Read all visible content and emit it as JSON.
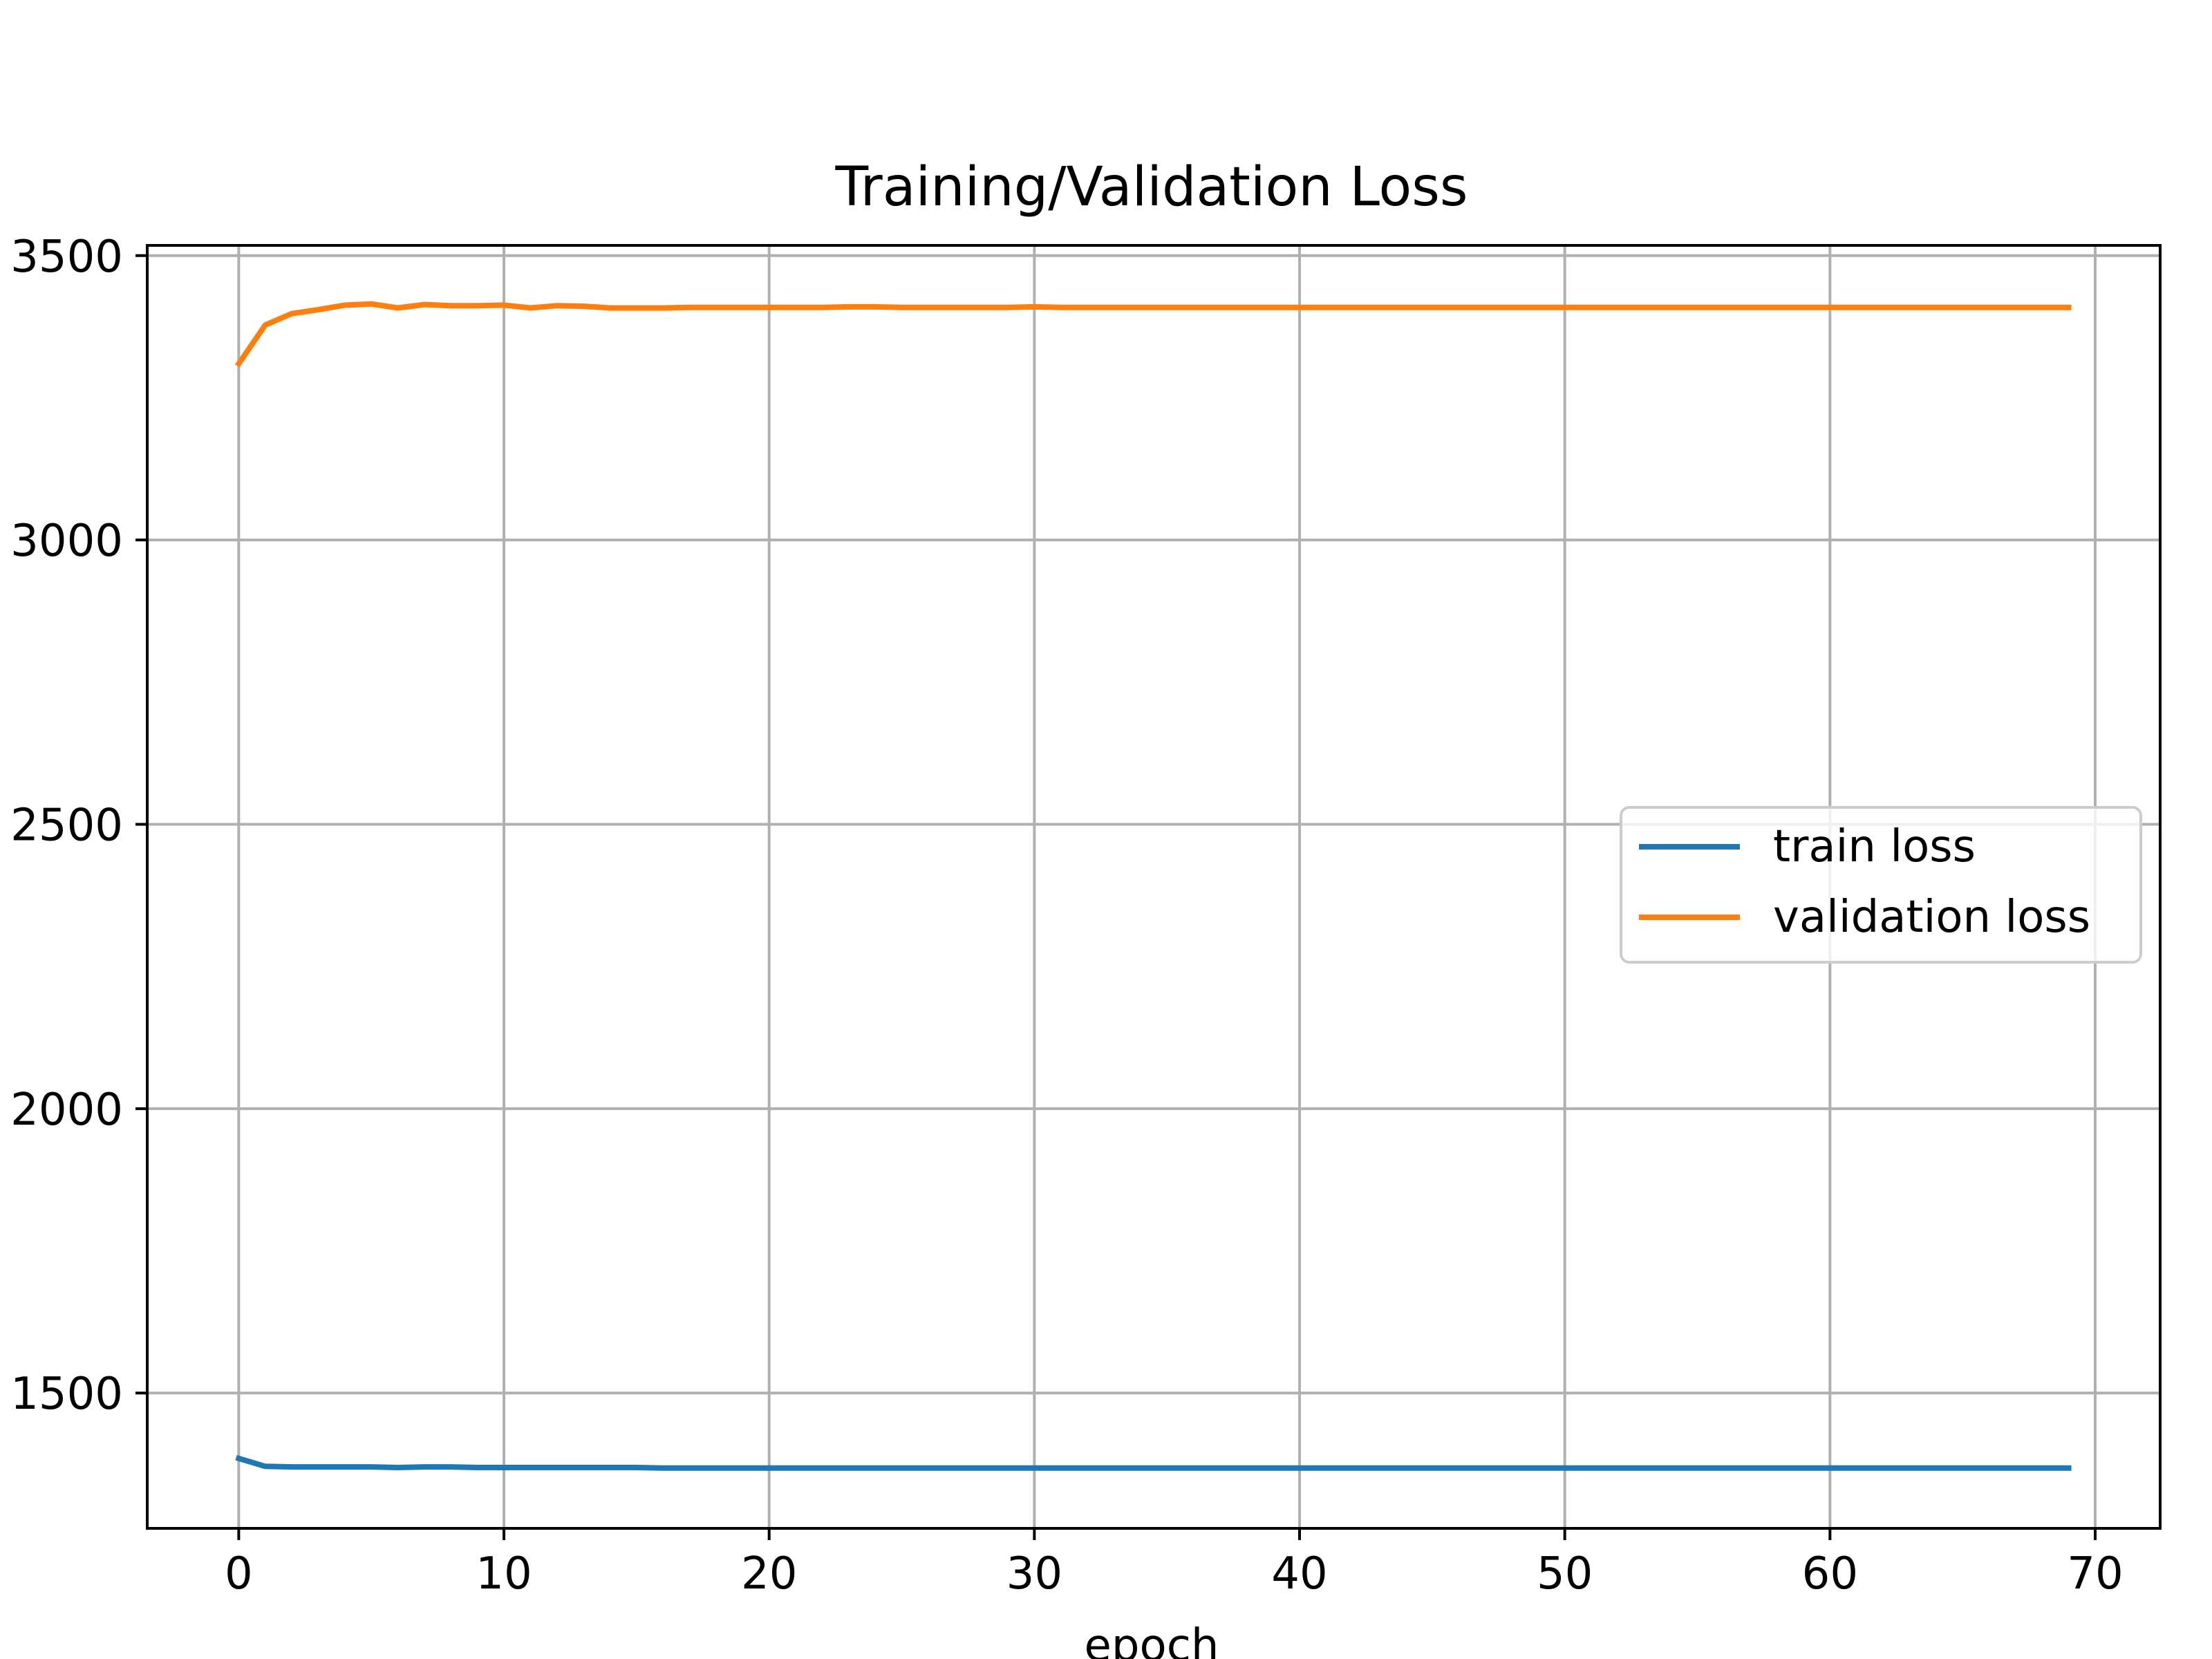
{
  "chart_data": {
    "type": "line",
    "title": "Training/Validation Loss",
    "xlabel": "epoch",
    "ylabel": "",
    "xlim": [
      -3.45,
      72.45
    ],
    "ylim": [
      1262,
      3518
    ],
    "x_ticks": [
      0,
      10,
      20,
      30,
      40,
      50,
      60,
      70
    ],
    "y_ticks": [
      1500,
      2000,
      2500,
      3000,
      3500
    ],
    "grid": true,
    "legend_position": "center-right",
    "series": [
      {
        "name": "train loss",
        "color": "#1f77b4",
        "x_start": 0,
        "values": [
          1385,
          1371,
          1370,
          1370,
          1370,
          1370,
          1369,
          1370,
          1370,
          1369,
          1369,
          1369,
          1369,
          1369,
          1369,
          1369,
          1368,
          1368,
          1368,
          1368,
          1368,
          1368,
          1368,
          1368,
          1368,
          1368,
          1368,
          1368,
          1368,
          1368,
          1368,
          1368,
          1368,
          1368,
          1368,
          1368,
          1368,
          1368,
          1368,
          1368,
          1368,
          1368,
          1368,
          1368,
          1368,
          1368,
          1368,
          1368,
          1368,
          1368,
          1368,
          1368,
          1368,
          1368,
          1368,
          1368,
          1368,
          1368,
          1368,
          1368,
          1368,
          1368,
          1368,
          1368,
          1368,
          1368,
          1368,
          1368,
          1368,
          1368
        ]
      },
      {
        "name": "validation loss",
        "color": "#ff7f0e",
        "x_start": 0,
        "values": [
          3310,
          3378,
          3398,
          3405,
          3413,
          3415,
          3408,
          3414,
          3412,
          3412,
          3413,
          3408,
          3412,
          3411,
          3408,
          3408,
          3408,
          3409,
          3409,
          3409,
          3409,
          3409,
          3409,
          3410,
          3410,
          3409,
          3409,
          3409,
          3409,
          3409,
          3410,
          3409,
          3409,
          3409,
          3409,
          3409,
          3409,
          3409,
          3409,
          3409,
          3409,
          3409,
          3409,
          3409,
          3409,
          3409,
          3409,
          3409,
          3409,
          3409,
          3409,
          3409,
          3409,
          3409,
          3409,
          3409,
          3409,
          3409,
          3409,
          3409,
          3409,
          3409,
          3409,
          3409,
          3409,
          3409,
          3409,
          3409,
          3409,
          3409
        ]
      }
    ]
  }
}
